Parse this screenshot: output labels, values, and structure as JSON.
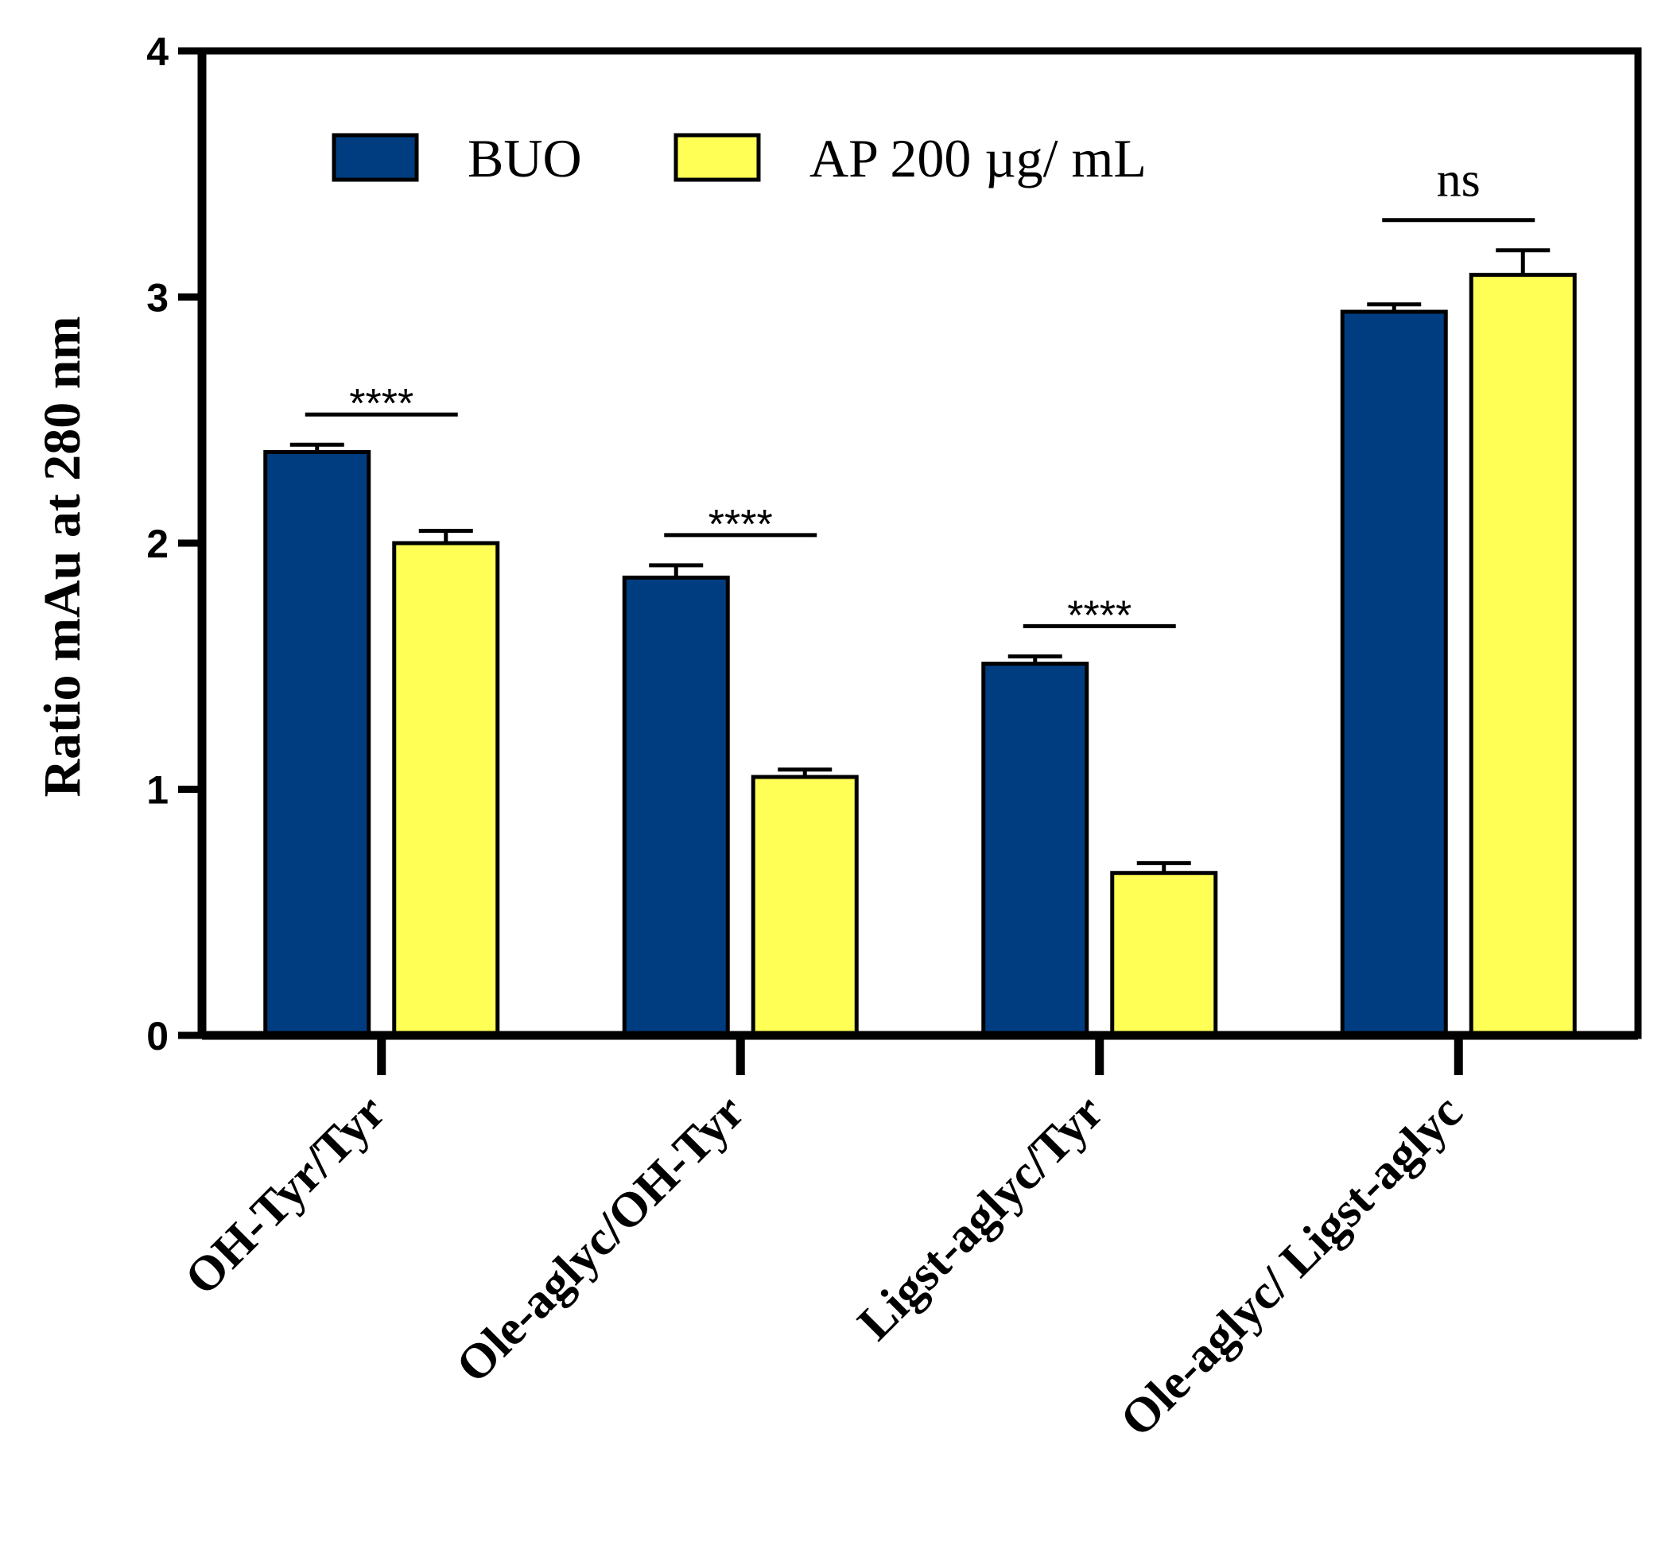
{
  "chart_data": {
    "type": "bar",
    "title": "",
    "xlabel": "",
    "ylabel": "Ratio mAu at 280 nm",
    "ylim": [
      0,
      4
    ],
    "yticks": [
      "0",
      "1",
      "2",
      "3",
      "4"
    ],
    "categories": [
      "OH-Tyr/Tyr",
      "Ole-aglyc/OH-Tyr",
      "Ligst-aglyc/Tyr",
      "Ole-aglyc/ Ligst-aglyc"
    ],
    "series": [
      {
        "name": "BUO",
        "color": "#003d80",
        "values": [
          2.37,
          1.86,
          1.51,
          2.94
        ],
        "errors": [
          0.03,
          0.05,
          0.03,
          0.03
        ]
      },
      {
        "name": "AP 200 µg/ mL",
        "color": "#ffff55",
        "values": [
          2.0,
          1.05,
          0.66,
          3.09
        ],
        "errors": [
          0.05,
          0.03,
          0.04,
          0.1
        ]
      }
    ],
    "significance": [
      "****",
      "****",
      "****",
      "ns"
    ],
    "legend_position": "top-left",
    "grid": false
  }
}
